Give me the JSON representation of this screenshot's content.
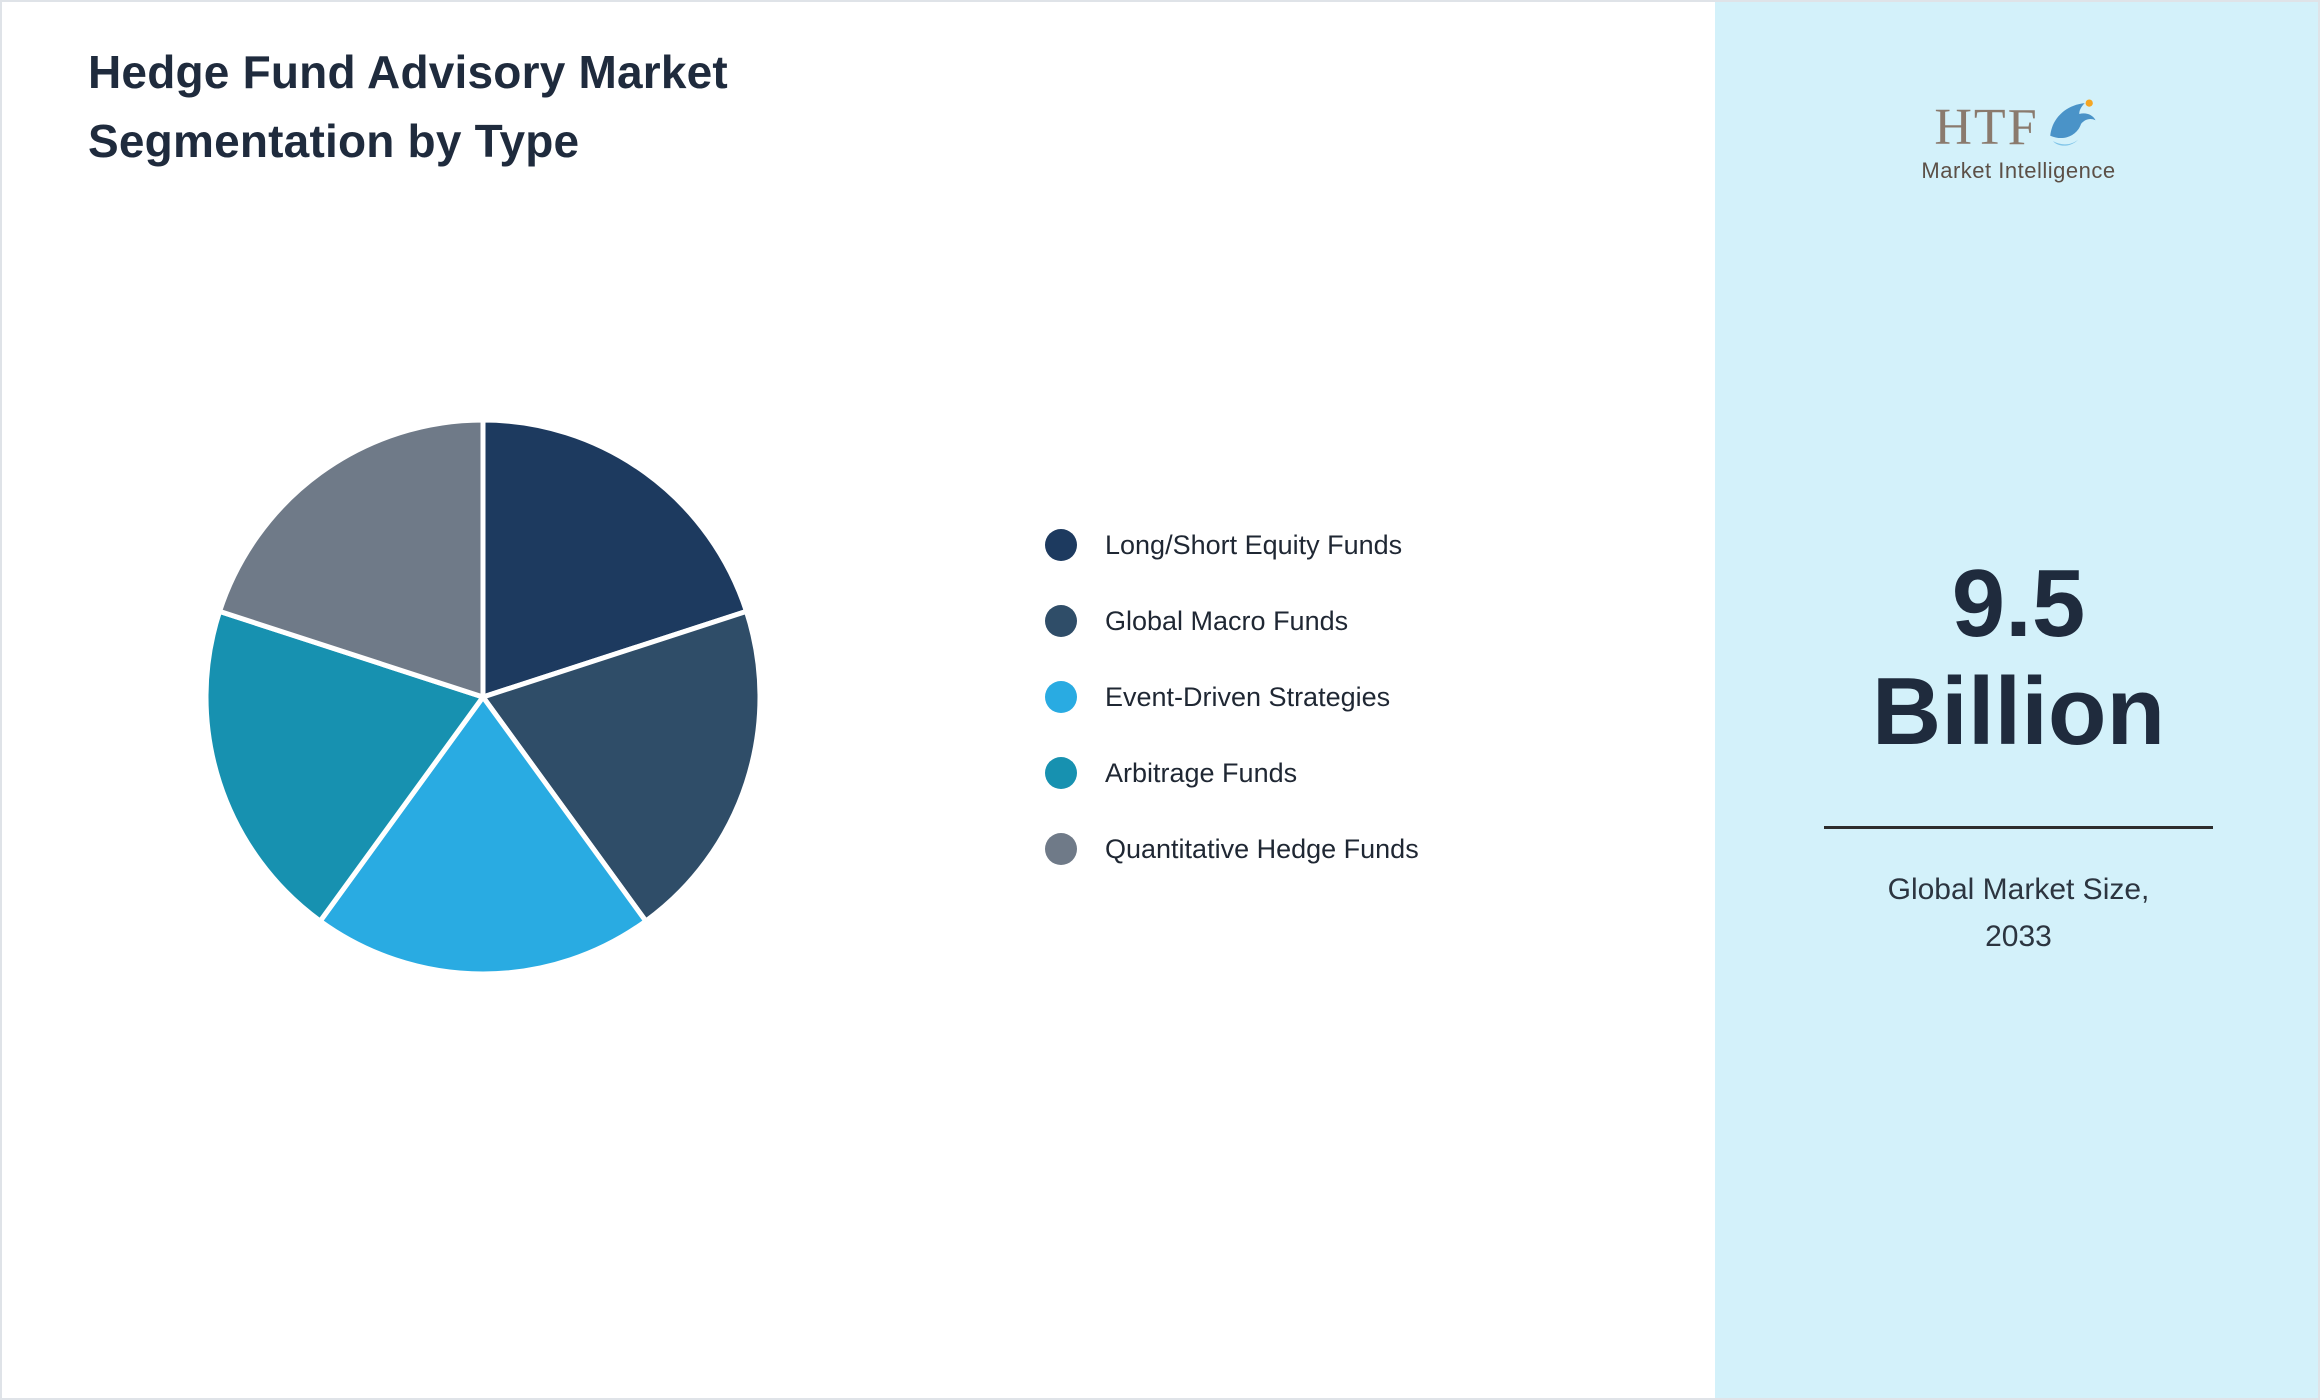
{
  "title": {
    "line1": "Hedge Fund Advisory Market",
    "line2": "Segmentation by Type"
  },
  "chart_data": {
    "type": "pie",
    "title": "Hedge Fund Advisory Market Segmentation by Type",
    "labels": [
      "Long/Short Equity Funds",
      "Global Macro Funds",
      "Event-Driven Strategies",
      "Arbitrage Funds",
      "Quantitative Hedge Funds"
    ],
    "values": [
      20,
      20,
      20,
      20,
      20
    ],
    "colors": [
      "#1d3a5f",
      "#2f4d68",
      "#29abe2",
      "#1791b0",
      "#6f7a88"
    ],
    "start_angle_deg": 0,
    "direction": "clockwise",
    "legend_position": "right",
    "slice_border_color": "#ffffff"
  },
  "sidebar": {
    "background": "#d3f1fa",
    "logo": {
      "text": "HTF",
      "subtext": "Market Intelligence",
      "mark_color": "#4a93c8",
      "accent_color": "#f5a623"
    },
    "market_size_value": "9.5",
    "market_size_unit": "Billion",
    "caption_line1": "Global Market Size,",
    "caption_line2": "2033"
  }
}
